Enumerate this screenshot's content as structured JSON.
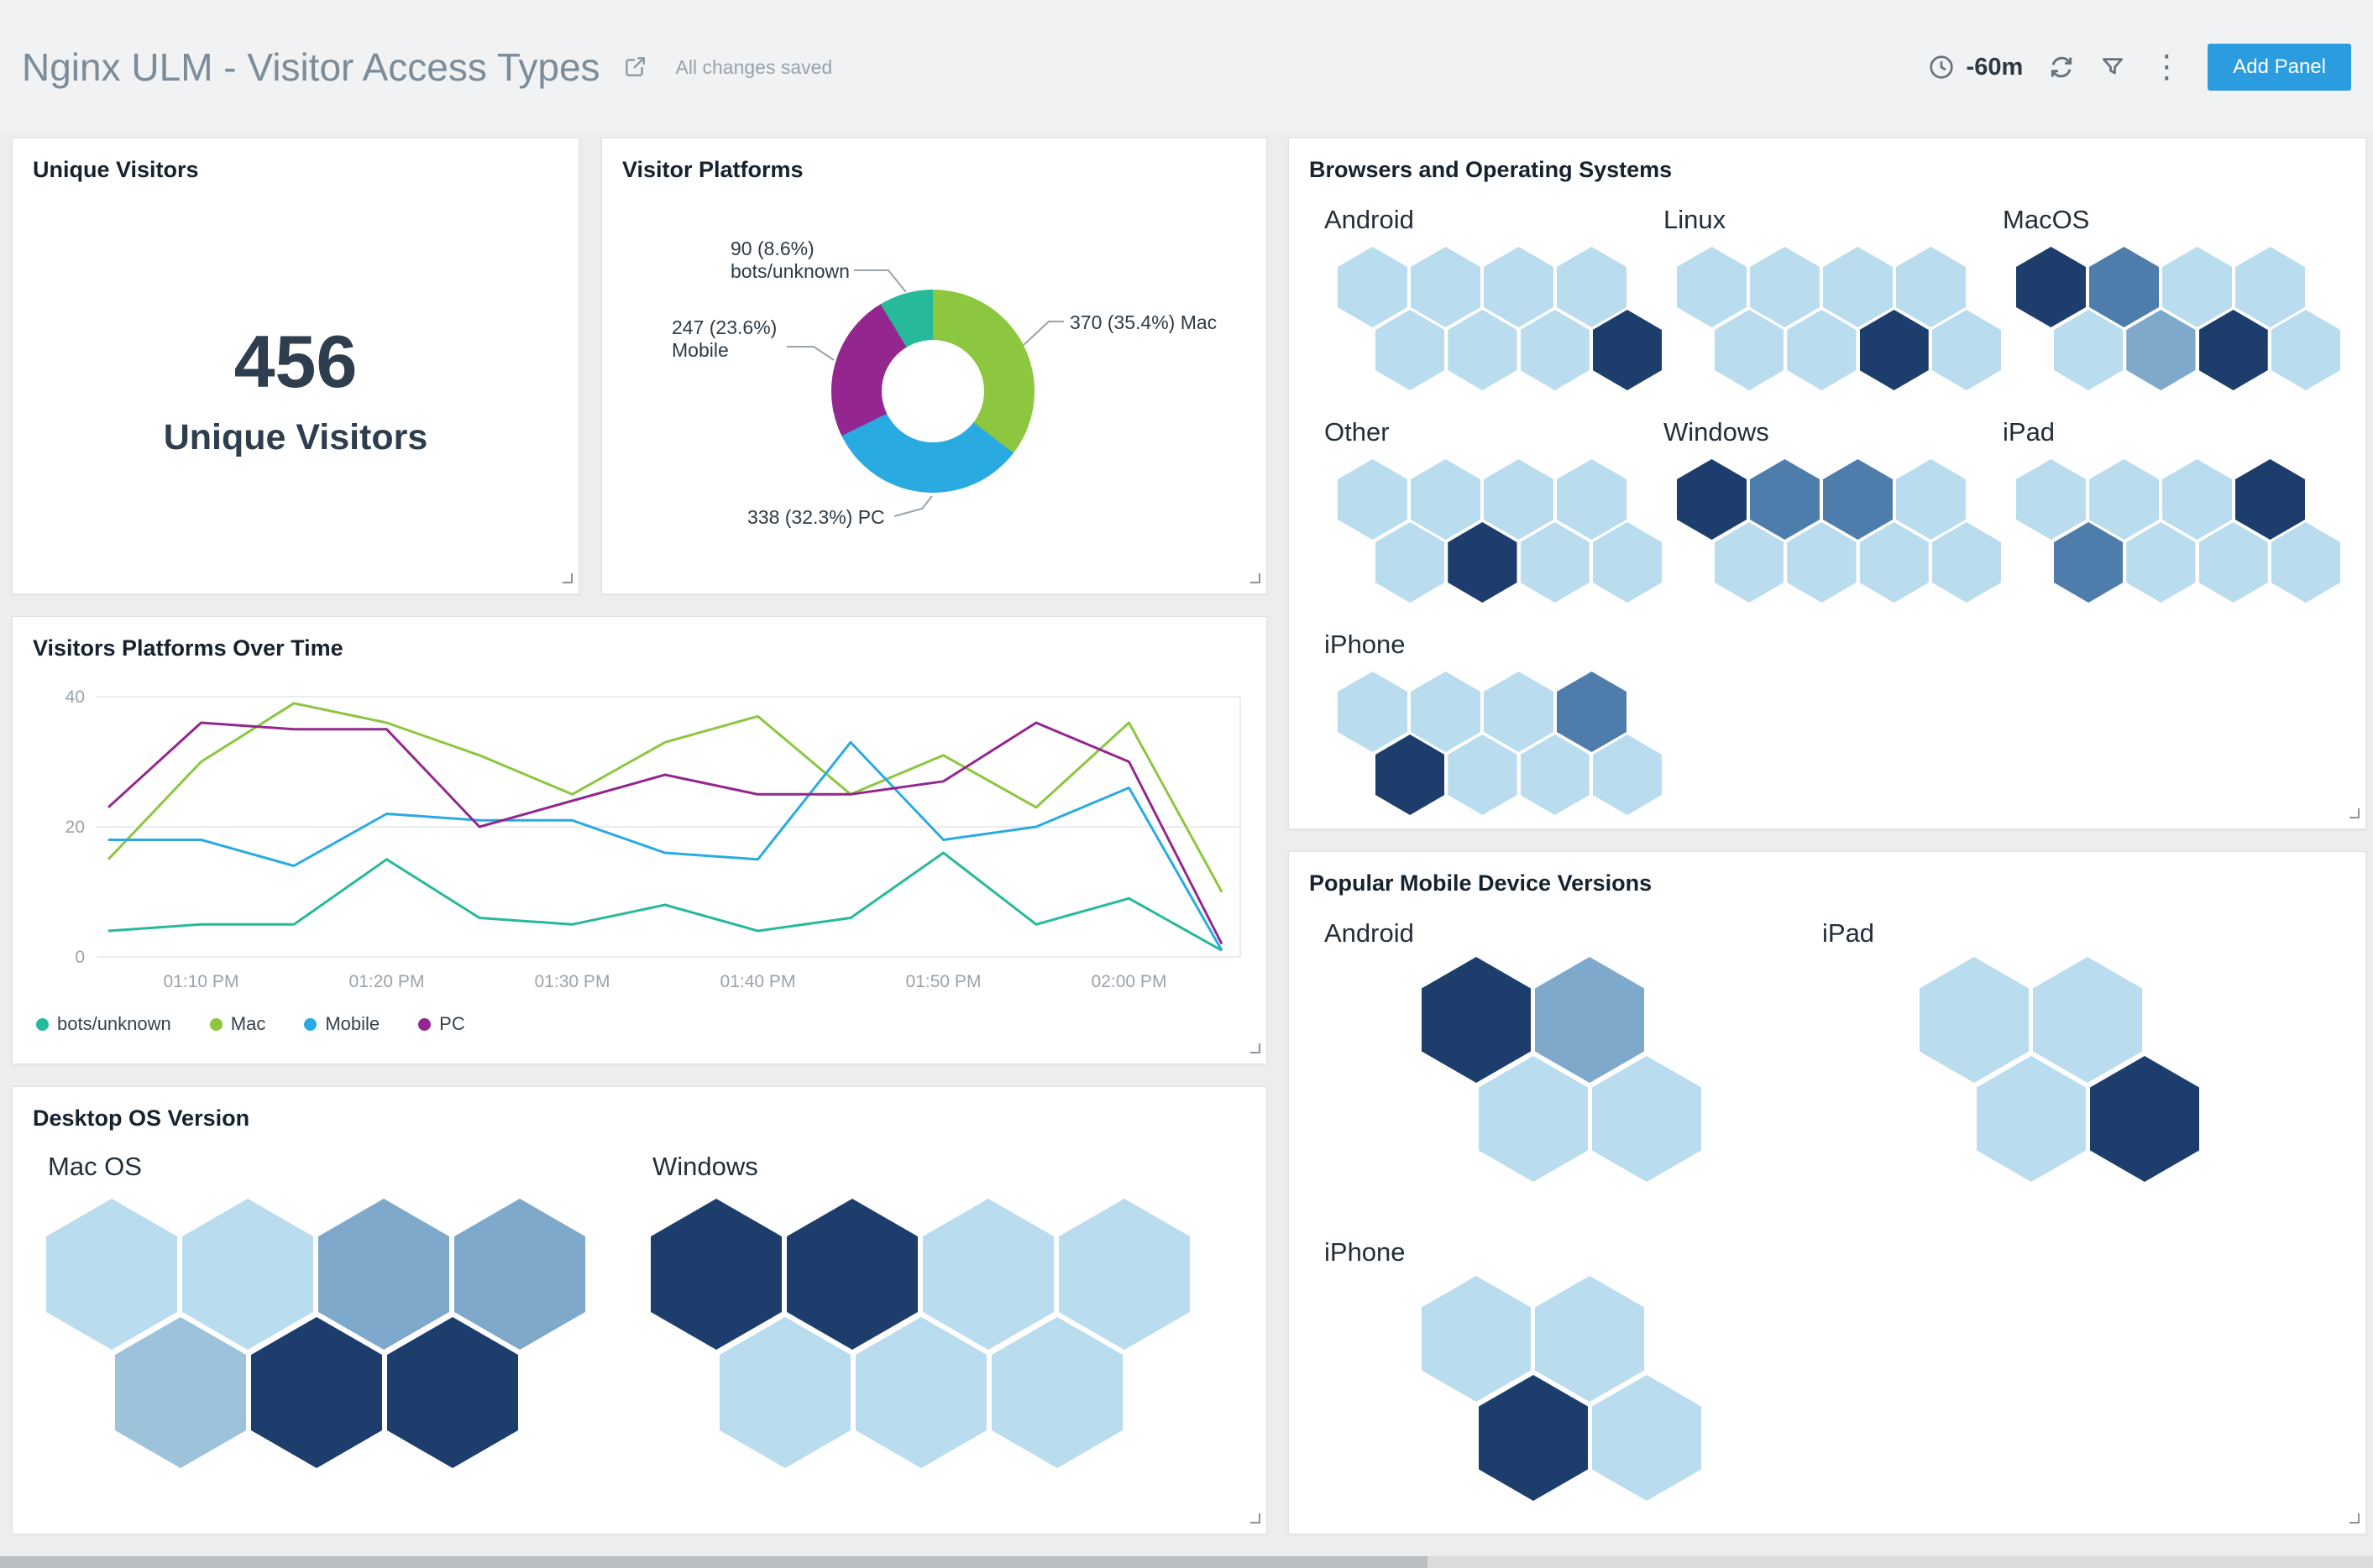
{
  "header": {
    "title": "Nginx ULM - Visitor Access Types",
    "status": "All changes saved",
    "time_range": "-60m",
    "add_panel_label": "Add Panel"
  },
  "colors": {
    "accent": "#2c9ce0"
  },
  "palette": {
    "l": "#b9dcee",
    "ml": "#9cc3db",
    "m": "#7fa9cb",
    "d": "#4e7dab",
    "n": "#1d3e6d"
  },
  "panels": {
    "unique_visitors": {
      "title": "Unique Visitors",
      "value": "456",
      "label": "Unique Visitors"
    },
    "visitor_platforms": {
      "title": "Visitor Platforms"
    },
    "browsers_os": {
      "title": "Browsers and Operating Systems",
      "groups": [
        {
          "name": "Android",
          "rows": [
            [
              "l",
              "l",
              "l",
              "l"
            ],
            [
              "l",
              "l",
              "l",
              "n"
            ]
          ]
        },
        {
          "name": "Linux",
          "rows": [
            [
              "l",
              "l",
              "l",
              "l"
            ],
            [
              "l",
              "l",
              "n",
              "l"
            ]
          ]
        },
        {
          "name": "MacOS",
          "rows": [
            [
              "n",
              "d",
              "l",
              "l"
            ],
            [
              "l",
              "m",
              "n",
              "l"
            ]
          ]
        },
        {
          "name": "Other",
          "rows": [
            [
              "l",
              "l",
              "l",
              "l"
            ],
            [
              "l",
              "n",
              "l",
              "l"
            ]
          ]
        },
        {
          "name": "Windows",
          "rows": [
            [
              "n",
              "d",
              "d",
              "l"
            ],
            [
              "l",
              "l",
              "l",
              "l"
            ]
          ]
        },
        {
          "name": "iPad",
          "rows": [
            [
              "l",
              "l",
              "l",
              "n"
            ],
            [
              "d",
              "l",
              "l",
              "l"
            ]
          ]
        },
        {
          "name": "iPhone",
          "rows": [
            [
              "l",
              "l",
              "l",
              "d"
            ],
            [
              "n",
              "l",
              "l",
              "l"
            ]
          ]
        }
      ]
    },
    "over_time": {
      "title": "Visitors Platforms Over Time"
    },
    "desktop_os": {
      "title": "Desktop OS Version",
      "groups": [
        {
          "name": "Mac OS",
          "rows": [
            [
              "l",
              "l",
              "m",
              "m"
            ],
            [
              "ml",
              "n",
              "n"
            ]
          ]
        },
        {
          "name": "Windows",
          "rows": [
            [
              "n",
              "n",
              "l",
              "l"
            ],
            [
              "l",
              "l",
              "l"
            ]
          ]
        }
      ]
    },
    "mobile_versions": {
      "title": "Popular Mobile Device Versions",
      "groups": [
        {
          "name": "Android",
          "rows": [
            [
              "n",
              "m"
            ],
            [
              "l",
              "l"
            ]
          ]
        },
        {
          "name": "iPad",
          "rows": [
            [
              "l",
              "l"
            ],
            [
              "l",
              "n"
            ]
          ]
        },
        {
          "name": "iPhone",
          "rows": [
            [
              "l",
              "l"
            ],
            [
              "n",
              "l"
            ]
          ]
        }
      ]
    }
  },
  "chart_data": [
    {
      "type": "pie",
      "title": "Visitor Platforms",
      "donut": true,
      "slices": [
        {
          "label": "Mac",
          "value": 370,
          "pct": "35.4%",
          "color": "#8dc63f"
        },
        {
          "label": "PC",
          "value": 338,
          "pct": "32.3%",
          "color": "#29abe2"
        },
        {
          "label": "Mobile",
          "value": 247,
          "pct": "23.6%",
          "color": "#93278f"
        },
        {
          "label": "bots/unknown",
          "value": 90,
          "pct": "8.6%",
          "color": "#26b99a"
        }
      ]
    },
    {
      "type": "line",
      "title": "Visitors Platforms Over Time",
      "x": [
        "01:05 PM",
        "01:10 PM",
        "01:15 PM",
        "01:20 PM",
        "01:25 PM",
        "01:30 PM",
        "01:35 PM",
        "01:40 PM",
        "01:45 PM",
        "01:50 PM",
        "01:55 PM",
        "02:00 PM",
        "02:05 PM"
      ],
      "x_tick_labels": [
        "01:10 PM",
        "01:20 PM",
        "01:30 PM",
        "01:40 PM",
        "01:50 PM",
        "02:00 PM"
      ],
      "ylim": [
        0,
        40
      ],
      "yticks": [
        0,
        20,
        40
      ],
      "grid": "horizontal",
      "legend_position": "bottom",
      "series": [
        {
          "name": "bots/unknown",
          "color": "#26b99a",
          "values": [
            4,
            5,
            5,
            15,
            6,
            5,
            8,
            4,
            6,
            16,
            5,
            9,
            1
          ]
        },
        {
          "name": "Mac",
          "color": "#8dc63f",
          "values": [
            15,
            30,
            39,
            36,
            31,
            25,
            33,
            37,
            25,
            31,
            23,
            36,
            10
          ]
        },
        {
          "name": "Mobile",
          "color": "#29abe2",
          "values": [
            18,
            18,
            14,
            22,
            21,
            21,
            16,
            15,
            33,
            18,
            20,
            26,
            1
          ]
        },
        {
          "name": "PC",
          "color": "#93278f",
          "values": [
            23,
            36,
            35,
            35,
            20,
            24,
            28,
            25,
            25,
            27,
            36,
            30,
            2
          ]
        }
      ]
    }
  ]
}
